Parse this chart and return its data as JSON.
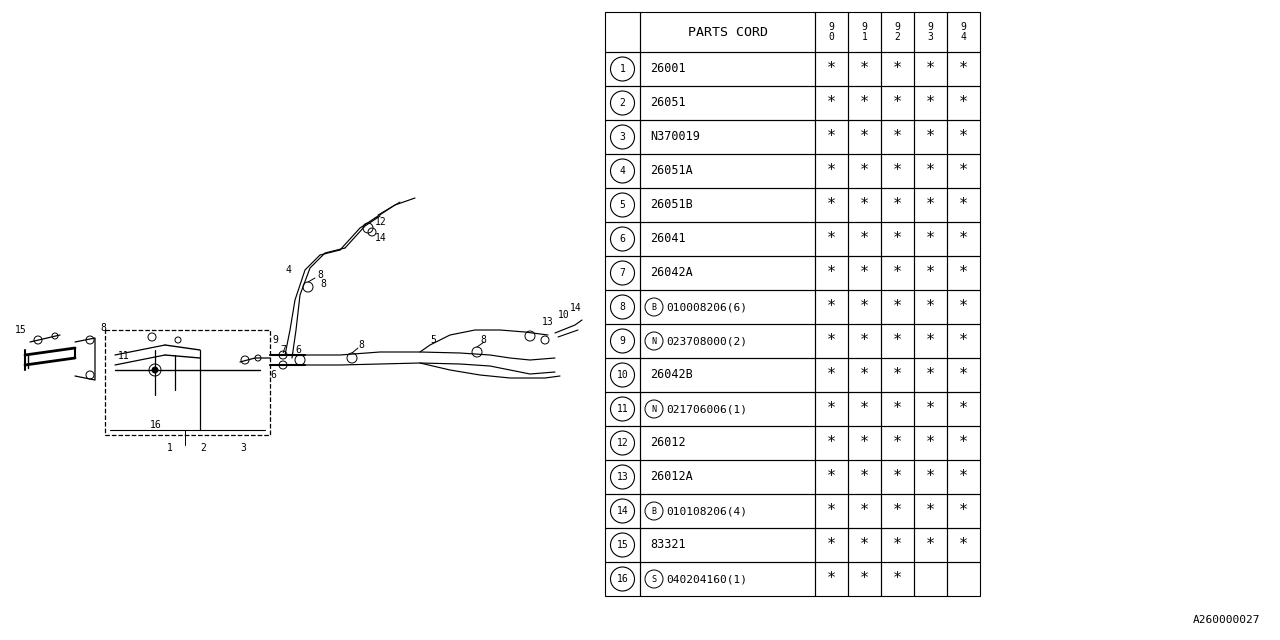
{
  "bg_color": "#ffffff",
  "line_color": "#000000",
  "text_color": "#000000",
  "doc_number": "A260000027",
  "table_col_header": "PARTS CORD",
  "table_years": [
    "9\n0",
    "9\n1",
    "9\n2",
    "9\n3",
    "9\n4"
  ],
  "table_rows": [
    {
      "num": "1",
      "prefix": "",
      "code": "26001",
      "stars": [
        1,
        1,
        1,
        1,
        1
      ]
    },
    {
      "num": "2",
      "prefix": "",
      "code": "26051",
      "stars": [
        1,
        1,
        1,
        1,
        1
      ]
    },
    {
      "num": "3",
      "prefix": "",
      "code": "N370019",
      "stars": [
        1,
        1,
        1,
        1,
        1
      ]
    },
    {
      "num": "4",
      "prefix": "",
      "code": "26051A",
      "stars": [
        1,
        1,
        1,
        1,
        1
      ]
    },
    {
      "num": "5",
      "prefix": "",
      "code": "26051B",
      "stars": [
        1,
        1,
        1,
        1,
        1
      ]
    },
    {
      "num": "6",
      "prefix": "",
      "code": "26041",
      "stars": [
        1,
        1,
        1,
        1,
        1
      ]
    },
    {
      "num": "7",
      "prefix": "",
      "code": "26042A",
      "stars": [
        1,
        1,
        1,
        1,
        1
      ]
    },
    {
      "num": "8",
      "prefix": "B",
      "code": "010008206(6)",
      "stars": [
        1,
        1,
        1,
        1,
        1
      ]
    },
    {
      "num": "9",
      "prefix": "N",
      "code": "023708000(2)",
      "stars": [
        1,
        1,
        1,
        1,
        1
      ]
    },
    {
      "num": "10",
      "prefix": "",
      "code": "26042B",
      "stars": [
        1,
        1,
        1,
        1,
        1
      ]
    },
    {
      "num": "11",
      "prefix": "N",
      "code": "021706006(1)",
      "stars": [
        1,
        1,
        1,
        1,
        1
      ]
    },
    {
      "num": "12",
      "prefix": "",
      "code": "26012",
      "stars": [
        1,
        1,
        1,
        1,
        1
      ]
    },
    {
      "num": "13",
      "prefix": "",
      "code": "26012A",
      "stars": [
        1,
        1,
        1,
        1,
        1
      ]
    },
    {
      "num": "14",
      "prefix": "B",
      "code": "010108206(4)",
      "stars": [
        1,
        1,
        1,
        1,
        1
      ]
    },
    {
      "num": "15",
      "prefix": "",
      "code": "83321",
      "stars": [
        1,
        1,
        1,
        1,
        1
      ]
    },
    {
      "num": "16",
      "prefix": "S",
      "code": "040204160(1)",
      "stars": [
        1,
        1,
        1,
        0,
        0
      ]
    }
  ]
}
